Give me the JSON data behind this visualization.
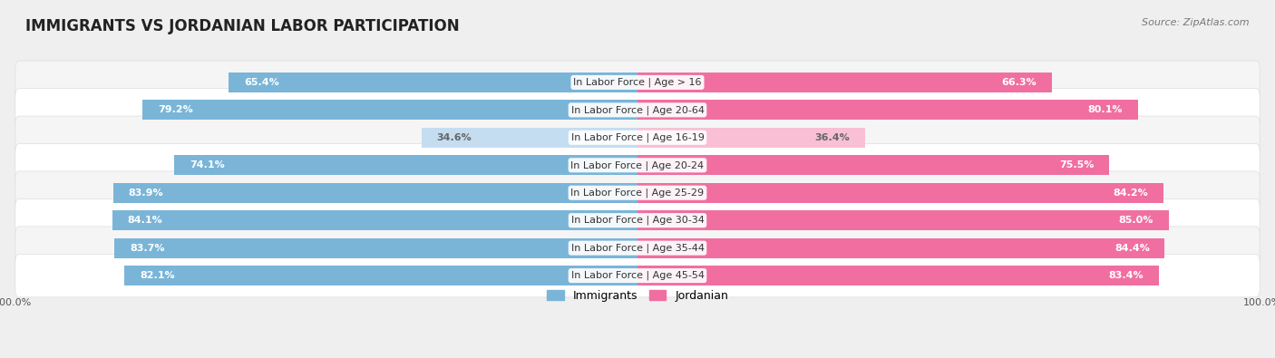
{
  "title": "IMMIGRANTS VS JORDANIAN LABOR PARTICIPATION",
  "source": "Source: ZipAtlas.com",
  "categories": [
    "In Labor Force | Age > 16",
    "In Labor Force | Age 20-64",
    "In Labor Force | Age 16-19",
    "In Labor Force | Age 20-24",
    "In Labor Force | Age 25-29",
    "In Labor Force | Age 30-34",
    "In Labor Force | Age 35-44",
    "In Labor Force | Age 45-54"
  ],
  "immigrants": [
    65.4,
    79.2,
    34.6,
    74.1,
    83.9,
    84.1,
    83.7,
    82.1
  ],
  "jordanian": [
    66.3,
    80.1,
    36.4,
    75.5,
    84.2,
    85.0,
    84.4,
    83.4
  ],
  "immigrant_color": "#7ab5d8",
  "jordanian_color": "#f06fa0",
  "immigrant_color_light": "#c5ddf0",
  "jordanian_color_light": "#f9c0d5",
  "bar_height": 0.72,
  "background_color": "#efefef",
  "row_bg_even": "#f5f5f5",
  "row_bg_odd": "#ffffff",
  "xlim": [
    0,
    100
  ],
  "legend_labels": [
    "Immigrants",
    "Jordanian"
  ],
  "title_fontsize": 12,
  "label_fontsize": 8,
  "value_fontsize": 8,
  "source_fontsize": 8
}
